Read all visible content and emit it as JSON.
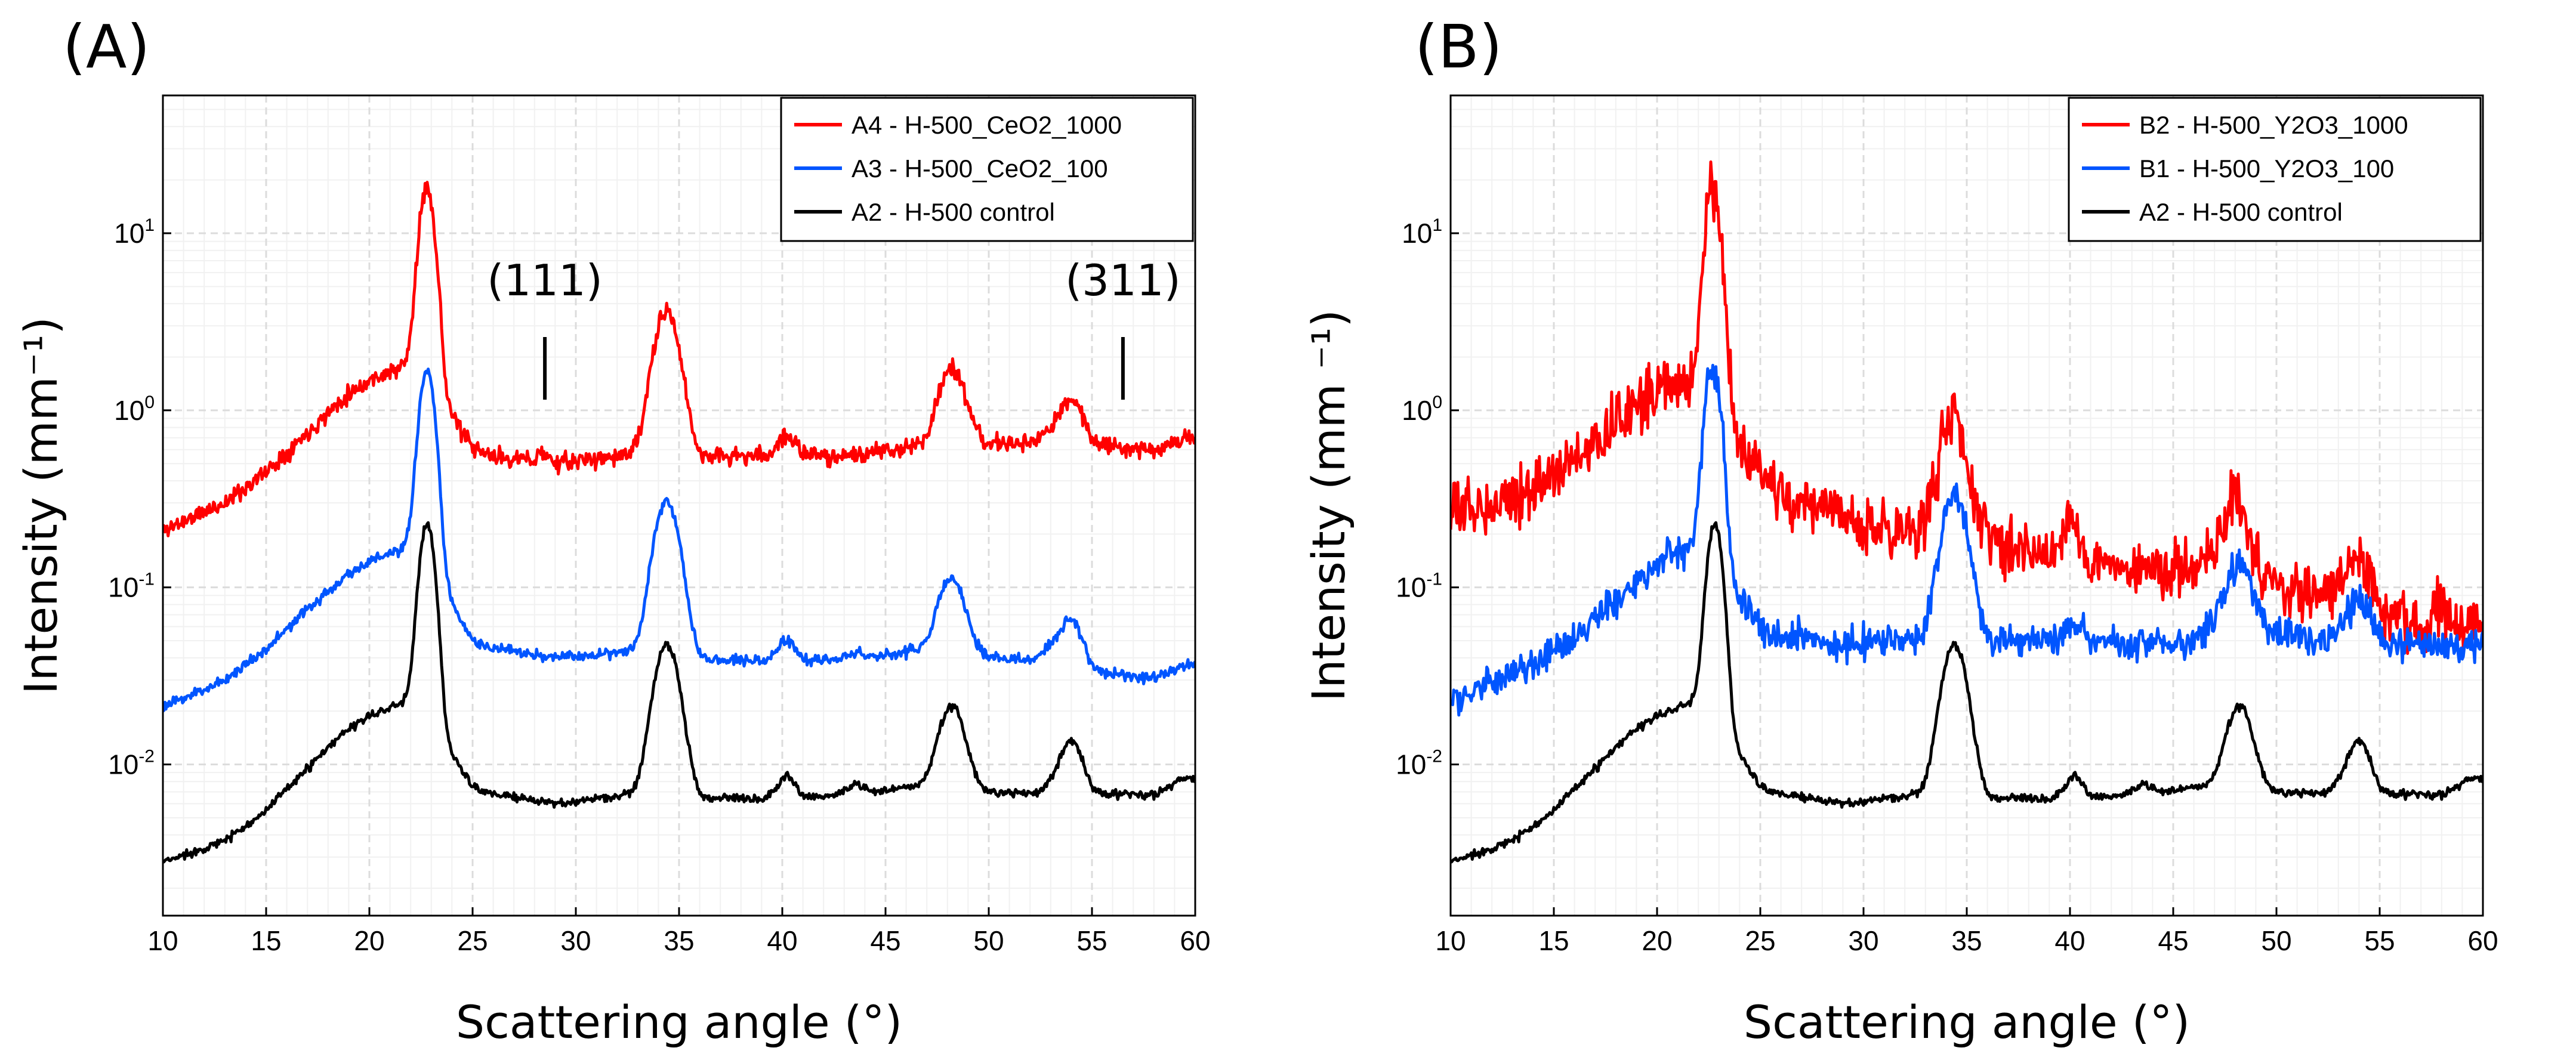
{
  "figure": {
    "panels": [
      "(A)",
      "(B)"
    ]
  },
  "chart_data": [
    {
      "panel_label": "(A)",
      "type": "line",
      "xlabel": "Scattering angle (°)",
      "ylabel": "Intensity (mm⁻¹)",
      "xscale": "linear",
      "yscale": "log",
      "xlim": [
        10,
        60
      ],
      "ylim": [
        0.0014,
        60
      ],
      "x_ticks": [
        10,
        15,
        20,
        25,
        30,
        35,
        40,
        45,
        50,
        55,
        60
      ],
      "y_ticks": [
        {
          "value": 0.01,
          "mantissa": "10",
          "exponent": "-2"
        },
        {
          "value": 0.1,
          "mantissa": "10",
          "exponent": "-1"
        },
        {
          "value": 1,
          "mantissa": "10",
          "exponent": "0"
        },
        {
          "value": 10,
          "mantissa": "10",
          "exponent": "1"
        }
      ],
      "grid": true,
      "legend": {
        "position": "top-right"
      },
      "annotations": [
        {
          "text": "(111)",
          "x": 28.5
        },
        {
          "text": "(311)",
          "x": 56.5
        }
      ],
      "series": [
        {
          "name": "A4 - H-500_CeO2_1000",
          "color": "#ff0000",
          "baseline": [
            [
              10,
              0.21
            ],
            [
              13,
              0.3
            ],
            [
              15,
              0.45
            ],
            [
              17,
              0.75
            ],
            [
              19,
              1.25
            ],
            [
              20.5,
              1.58
            ],
            [
              21.5,
              1.72
            ],
            [
              22.3,
              2.0
            ],
            [
              25,
              0.6
            ],
            [
              26,
              0.55
            ],
            [
              29,
              0.5
            ],
            [
              32,
              0.55
            ],
            [
              34,
              0.6
            ],
            [
              36,
              0.55
            ],
            [
              40,
              0.55
            ],
            [
              44,
              0.56
            ],
            [
              47,
              0.65
            ],
            [
              48,
              0.75
            ],
            [
              50,
              0.65
            ],
            [
              52,
              0.65
            ],
            [
              53,
              0.75
            ],
            [
              55,
              0.65
            ],
            [
              58,
              0.6
            ],
            [
              60,
              0.65
            ]
          ],
          "peaks": [
            [
              22.8,
              16.5,
              0.33
            ],
            [
              34.4,
              3.0,
              0.55
            ],
            [
              40.2,
              0.17,
              0.4
            ],
            [
              48.2,
              1.0,
              0.55
            ],
            [
              54.0,
              0.45,
              0.5
            ],
            [
              28.4,
              0.07,
              0.25
            ],
            [
              59.5,
              0.06,
              0.5
            ]
          ],
          "noise": 0.025,
          "seed": 11
        },
        {
          "name": "A3 - H-500_CeO2_100",
          "color": "#0055ff",
          "baseline": [
            [
              10,
              0.021
            ],
            [
              13,
              0.03
            ],
            [
              15,
              0.045
            ],
            [
              17,
              0.075
            ],
            [
              19,
              0.12
            ],
            [
              20.5,
              0.15
            ],
            [
              21.5,
              0.16
            ],
            [
              22.3,
              0.19
            ],
            [
              25,
              0.05
            ],
            [
              26,
              0.045
            ],
            [
              29,
              0.04
            ],
            [
              32,
              0.043
            ],
            [
              34,
              0.045
            ],
            [
              36,
              0.04
            ],
            [
              40,
              0.038
            ],
            [
              44,
              0.04
            ],
            [
              47,
              0.045
            ],
            [
              48,
              0.05
            ],
            [
              50,
              0.04
            ],
            [
              52,
              0.039
            ],
            [
              53,
              0.045
            ],
            [
              55,
              0.033
            ],
            [
              58,
              0.031
            ],
            [
              60,
              0.034
            ]
          ],
          "peaks": [
            [
              22.8,
              1.55,
              0.33
            ],
            [
              34.4,
              0.26,
              0.55
            ],
            [
              40.2,
              0.012,
              0.4
            ],
            [
              43.5,
              0.003,
              0.4
            ],
            [
              48.2,
              0.066,
              0.55
            ],
            [
              54.0,
              0.027,
              0.5
            ],
            [
              59.5,
              0.003,
              0.5
            ]
          ],
          "noise": 0.015,
          "seed": 23
        },
        {
          "name": "A2 - H-500 control",
          "color": "#000000",
          "baseline": [
            [
              10,
              0.0028
            ],
            [
              13,
              0.0037
            ],
            [
              15,
              0.0055
            ],
            [
              17,
              0.0095
            ],
            [
              19,
              0.016
            ],
            [
              20.5,
              0.02
            ],
            [
              21.5,
              0.022
            ],
            [
              22.3,
              0.024
            ],
            [
              25,
              0.0075
            ],
            [
              26,
              0.0068
            ],
            [
              29,
              0.006
            ],
            [
              32,
              0.0066
            ],
            [
              34,
              0.007
            ],
            [
              36,
              0.0065
            ],
            [
              40,
              0.0064
            ],
            [
              44,
              0.0068
            ],
            [
              47,
              0.0078
            ],
            [
              48,
              0.0085
            ],
            [
              50,
              0.007
            ],
            [
              52,
              0.0068
            ],
            [
              53,
              0.0074
            ],
            [
              55,
              0.0068
            ],
            [
              58,
              0.0068
            ],
            [
              60,
              0.0078
            ]
          ],
          "peaks": [
            [
              22.8,
              0.21,
              0.33
            ],
            [
              34.4,
              0.04,
              0.55
            ],
            [
              40.2,
              0.0023,
              0.4
            ],
            [
              43.5,
              0.001,
              0.4
            ],
            [
              48.2,
              0.013,
              0.55
            ],
            [
              54.0,
              0.0065,
              0.5
            ],
            [
              59.5,
              0.0008,
              0.5
            ]
          ],
          "noise": 0.012,
          "seed": 37
        }
      ]
    },
    {
      "panel_label": "(B)",
      "type": "line",
      "xlabel": "Scattering angle (°)",
      "ylabel": "Intensity (mm ⁻¹)",
      "xscale": "linear",
      "yscale": "log",
      "xlim": [
        10,
        60
      ],
      "ylim": [
        0.0014,
        60
      ],
      "x_ticks": [
        10,
        15,
        20,
        25,
        30,
        35,
        40,
        45,
        50,
        55,
        60
      ],
      "y_ticks": [
        {
          "value": 0.01,
          "mantissa": "10",
          "exponent": "-2"
        },
        {
          "value": 0.1,
          "mantissa": "10",
          "exponent": "-1"
        },
        {
          "value": 1,
          "mantissa": "10",
          "exponent": "0"
        },
        {
          "value": 10,
          "mantissa": "10",
          "exponent": "1"
        }
      ],
      "grid": true,
      "legend": {
        "position": "top-right"
      },
      "annotations": [],
      "series": [
        {
          "name": "B2 - H-500_Y2O3_1000",
          "color": "#ff0000",
          "baseline": [
            [
              10,
              0.26
            ],
            [
              13,
              0.33
            ],
            [
              15,
              0.42
            ],
            [
              17,
              0.65
            ],
            [
              19,
              1.1
            ],
            [
              20.5,
              1.35
            ],
            [
              21.5,
              1.45
            ],
            [
              22.3,
              1.6
            ],
            [
              24,
              0.6
            ],
            [
              26,
              0.33
            ],
            [
              28,
              0.27
            ],
            [
              30,
              0.22
            ],
            [
              32,
              0.21
            ],
            [
              33,
              0.21
            ],
            [
              36,
              0.2
            ],
            [
              38,
              0.16
            ],
            [
              40,
              0.15
            ],
            [
              42,
              0.14
            ],
            [
              44,
              0.12
            ],
            [
              46,
              0.125
            ],
            [
              47.5,
              0.16
            ],
            [
              49,
              0.12
            ],
            [
              51,
              0.09
            ],
            [
              53,
              0.1
            ],
            [
              55,
              0.075
            ],
            [
              57,
              0.058
            ],
            [
              60,
              0.062
            ]
          ],
          "peaks": [
            [
              22.7,
              16.5,
              0.33
            ],
            [
              34.3,
              0.7,
              0.55
            ],
            [
              40.0,
              0.1,
              0.3
            ],
            [
              48.0,
              0.17,
              0.5
            ],
            [
              54.0,
              0.06,
              0.5
            ],
            [
              58.0,
              0.015,
              0.3
            ]
          ],
          "noise": 0.08,
          "seed": 53
        },
        {
          "name": "B1 - H-500_Y2O3_100",
          "color": "#0055ff",
          "baseline": [
            [
              10,
              0.023
            ],
            [
              13,
              0.032
            ],
            [
              15,
              0.042
            ],
            [
              17,
              0.065
            ],
            [
              19,
              0.11
            ],
            [
              20.5,
              0.15
            ],
            [
              21.5,
              0.17
            ],
            [
              22.3,
              0.19
            ],
            [
              25,
              0.06
            ],
            [
              26,
              0.055
            ],
            [
              29,
              0.048
            ],
            [
              32,
              0.05
            ],
            [
              34,
              0.052
            ],
            [
              36,
              0.05
            ],
            [
              40,
              0.05
            ],
            [
              44,
              0.048
            ],
            [
              46,
              0.05
            ],
            [
              47,
              0.06
            ],
            [
              48,
              0.07
            ],
            [
              50,
              0.055
            ],
            [
              52,
              0.05
            ],
            [
              53,
              0.055
            ],
            [
              55,
              0.05
            ],
            [
              58,
              0.045
            ],
            [
              60,
              0.047
            ]
          ],
          "peaks": [
            [
              22.7,
              1.65,
              0.33
            ],
            [
              34.4,
              0.29,
              0.55
            ],
            [
              40.2,
              0.012,
              0.4
            ],
            [
              48.2,
              0.07,
              0.55
            ],
            [
              54.0,
              0.03,
              0.5
            ]
          ],
          "noise": 0.045,
          "seed": 71
        },
        {
          "name": "A2 - H-500 control",
          "color": "#000000",
          "baseline": [
            [
              10,
              0.0028
            ],
            [
              13,
              0.0037
            ],
            [
              15,
              0.0055
            ],
            [
              17,
              0.0095
            ],
            [
              19,
              0.016
            ],
            [
              20.5,
              0.02
            ],
            [
              21.5,
              0.022
            ],
            [
              22.3,
              0.024
            ],
            [
              25,
              0.0075
            ],
            [
              26,
              0.0068
            ],
            [
              29,
              0.006
            ],
            [
              32,
              0.0066
            ],
            [
              34,
              0.007
            ],
            [
              36,
              0.0065
            ],
            [
              40,
              0.0064
            ],
            [
              44,
              0.0068
            ],
            [
              47,
              0.0078
            ],
            [
              48,
              0.0085
            ],
            [
              50,
              0.007
            ],
            [
              52,
              0.0068
            ],
            [
              53,
              0.0074
            ],
            [
              55,
              0.0068
            ],
            [
              58,
              0.0068
            ],
            [
              60,
              0.0078
            ]
          ],
          "peaks": [
            [
              22.8,
              0.21,
              0.33
            ],
            [
              34.4,
              0.04,
              0.55
            ],
            [
              40.2,
              0.0023,
              0.4
            ],
            [
              43.5,
              0.001,
              0.4
            ],
            [
              48.2,
              0.013,
              0.55
            ],
            [
              54.0,
              0.0065,
              0.5
            ],
            [
              59.5,
              0.0008,
              0.5
            ]
          ],
          "noise": 0.012,
          "seed": 37
        }
      ]
    }
  ]
}
